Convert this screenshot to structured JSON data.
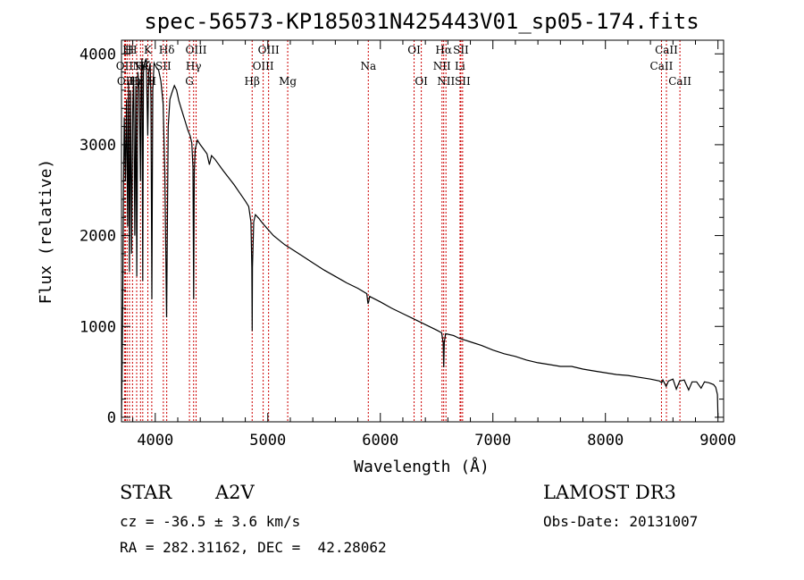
{
  "chart_data": {
    "type": "line",
    "title": "spec-56573-KP185031N425443V01_sp05-174.fits",
    "xlabel": "Wavelength (Å)",
    "ylabel": "Flux (relative)",
    "xlim": [
      3700,
      9050
    ],
    "ylim": [
      -50,
      4150
    ],
    "xticks": [
      4000,
      5000,
      6000,
      7000,
      8000,
      9000
    ],
    "yticks": [
      0,
      1000,
      2000,
      3000,
      4000
    ],
    "series": [
      {
        "name": "spectrum",
        "points": [
          [
            3700,
            0
          ],
          [
            3705,
            450
          ],
          [
            3712,
            1400
          ],
          [
            3718,
            2600
          ],
          [
            3725,
            3300
          ],
          [
            3735,
            2600
          ],
          [
            3745,
            3500
          ],
          [
            3755,
            2100
          ],
          [
            3763,
            3700
          ],
          [
            3771,
            1600
          ],
          [
            3780,
            3600
          ],
          [
            3790,
            1800
          ],
          [
            3800,
            3400
          ],
          [
            3808,
            3750
          ],
          [
            3818,
            2000
          ],
          [
            3828,
            3650
          ],
          [
            3836,
            1550
          ],
          [
            3845,
            3800
          ],
          [
            3858,
            3600
          ],
          [
            3869,
            2600
          ],
          [
            3875,
            3700
          ],
          [
            3882,
            3950
          ],
          [
            3889,
            1500
          ],
          [
            3895,
            3800
          ],
          [
            3905,
            3900
          ],
          [
            3920,
            3950
          ],
          [
            3933,
            3100
          ],
          [
            3942,
            3800
          ],
          [
            3955,
            3900
          ],
          [
            3962,
            3500
          ],
          [
            3970,
            1300
          ],
          [
            3978,
            3600
          ],
          [
            3990,
            3900
          ],
          [
            4010,
            3850
          ],
          [
            4030,
            3820
          ],
          [
            4050,
            3700
          ],
          [
            4070,
            3450
          ],
          [
            4085,
            2700
          ],
          [
            4101,
            1100
          ],
          [
            4115,
            3200
          ],
          [
            4130,
            3500
          ],
          [
            4150,
            3580
          ],
          [
            4170,
            3650
          ],
          [
            4190,
            3600
          ],
          [
            4210,
            3480
          ],
          [
            4230,
            3400
          ],
          [
            4250,
            3320
          ],
          [
            4270,
            3240
          ],
          [
            4290,
            3160
          ],
          [
            4310,
            3100
          ],
          [
            4325,
            3020
          ],
          [
            4335,
            2750
          ],
          [
            4341,
            1300
          ],
          [
            4347,
            2700
          ],
          [
            4355,
            2950
          ],
          [
            4375,
            3050
          ],
          [
            4400,
            3000
          ],
          [
            4430,
            2950
          ],
          [
            4460,
            2900
          ],
          [
            4481,
            2780
          ],
          [
            4500,
            2880
          ],
          [
            4530,
            2840
          ],
          [
            4560,
            2790
          ],
          [
            4600,
            2720
          ],
          [
            4650,
            2640
          ],
          [
            4700,
            2560
          ],
          [
            4750,
            2470
          ],
          [
            4800,
            2380
          ],
          [
            4830,
            2320
          ],
          [
            4850,
            2150
          ],
          [
            4858,
            1650
          ],
          [
            4861,
            950
          ],
          [
            4864,
            1650
          ],
          [
            4875,
            2150
          ],
          [
            4890,
            2230
          ],
          [
            4920,
            2190
          ],
          [
            4950,
            2140
          ],
          [
            5000,
            2070
          ],
          [
            5050,
            2000
          ],
          [
            5100,
            1950
          ],
          [
            5150,
            1900
          ],
          [
            5200,
            1860
          ],
          [
            5300,
            1780
          ],
          [
            5400,
            1700
          ],
          [
            5500,
            1620
          ],
          [
            5600,
            1550
          ],
          [
            5700,
            1480
          ],
          [
            5800,
            1420
          ],
          [
            5880,
            1360
          ],
          [
            5890,
            1250
          ],
          [
            5896,
            1270
          ],
          [
            5905,
            1330
          ],
          [
            6000,
            1270
          ],
          [
            6100,
            1200
          ],
          [
            6200,
            1140
          ],
          [
            6300,
            1080
          ],
          [
            6400,
            1020
          ],
          [
            6500,
            960
          ],
          [
            6545,
            930
          ],
          [
            6558,
            820
          ],
          [
            6563,
            550
          ],
          [
            6568,
            820
          ],
          [
            6580,
            920
          ],
          [
            6650,
            900
          ],
          [
            6700,
            870
          ],
          [
            6800,
            830
          ],
          [
            6900,
            790
          ],
          [
            7000,
            740
          ],
          [
            7100,
            700
          ],
          [
            7200,
            670
          ],
          [
            7300,
            630
          ],
          [
            7400,
            600
          ],
          [
            7500,
            580
          ],
          [
            7600,
            560
          ],
          [
            7700,
            560
          ],
          [
            7800,
            530
          ],
          [
            7900,
            510
          ],
          [
            8000,
            490
          ],
          [
            8100,
            470
          ],
          [
            8200,
            460
          ],
          [
            8300,
            440
          ],
          [
            8400,
            420
          ],
          [
            8480,
            400
          ],
          [
            8500,
            380
          ],
          [
            8510,
            410
          ],
          [
            8540,
            340
          ],
          [
            8560,
            400
          ],
          [
            8600,
            420
          ],
          [
            8630,
            310
          ],
          [
            8660,
            400
          ],
          [
            8700,
            410
          ],
          [
            8740,
            300
          ],
          [
            8770,
            390
          ],
          [
            8810,
            390
          ],
          [
            8850,
            320
          ],
          [
            8880,
            390
          ],
          [
            8920,
            380
          ],
          [
            8960,
            360
          ],
          [
            8980,
            330
          ],
          [
            8995,
            250
          ],
          [
            9000,
            0
          ]
        ]
      }
    ],
    "line_markers": [
      {
        "wave": 3727,
        "label": "OII",
        "row": 2
      },
      {
        "wave": 3736,
        "label": "OII",
        "row": 3
      },
      {
        "wave": 3750,
        "label": "H",
        "row": 1
      },
      {
        "wave": 3771,
        "label": "H",
        "row": 1
      },
      {
        "wave": 3798,
        "label": "H",
        "row": 1
      },
      {
        "wave": 3835,
        "label": "Hη",
        "row": 3
      },
      {
        "wave": 3869,
        "label": "Ne",
        "row": 2
      },
      {
        "wave": 3889,
        "label": "Hζ",
        "row": 2
      },
      {
        "wave": 3934,
        "label": "K",
        "row": 1
      },
      {
        "wave": 3969,
        "label": "H",
        "row": 3
      },
      {
        "wave": 4072,
        "label": "SII",
        "row": 2
      },
      {
        "wave": 4102,
        "label": "Hδ",
        "row": 1
      },
      {
        "wave": 4304,
        "label": "G",
        "row": 3
      },
      {
        "wave": 4341,
        "label": "Hγ",
        "row": 2
      },
      {
        "wave": 4363,
        "label": "OIII",
        "row": 1
      },
      {
        "wave": 4861,
        "label": "Hβ",
        "row": 3
      },
      {
        "wave": 4959,
        "label": "OIII",
        "row": 2
      },
      {
        "wave": 5007,
        "label": "OIII",
        "row": 1
      },
      {
        "wave": 5177,
        "label": "Mg",
        "row": 3
      },
      {
        "wave": 5893,
        "label": "Na",
        "row": 2
      },
      {
        "wave": 6300,
        "label": "OI",
        "row": 1
      },
      {
        "wave": 6364,
        "label": "OI",
        "row": 3
      },
      {
        "wave": 6548,
        "label": "NII",
        "row": 2
      },
      {
        "wave": 6563,
        "label": "Hα",
        "row": 1
      },
      {
        "wave": 6583,
        "label": "NII",
        "row": 3
      },
      {
        "wave": 6708,
        "label": "Li",
        "row": 2
      },
      {
        "wave": 6716,
        "label": "SII",
        "row": 1
      },
      {
        "wave": 6731,
        "label": "SII",
        "row": 3
      },
      {
        "wave": 8498,
        "label": "CaII",
        "row": 2
      },
      {
        "wave": 8542,
        "label": "CaII",
        "row": 1
      },
      {
        "wave": 8662,
        "label": "CaII",
        "row": 3
      }
    ],
    "marker_color": "#cc0000",
    "line_color": "#000000"
  },
  "info": {
    "object_class": "STAR",
    "subclass": "A2V",
    "redshift": "cz = -36.5 ± 3.6 km/s",
    "coords": "RA = 282.31162, DEC =  42.28062",
    "survey": "LAMOST DR3",
    "obs_date": "Obs-Date: 20131007"
  }
}
